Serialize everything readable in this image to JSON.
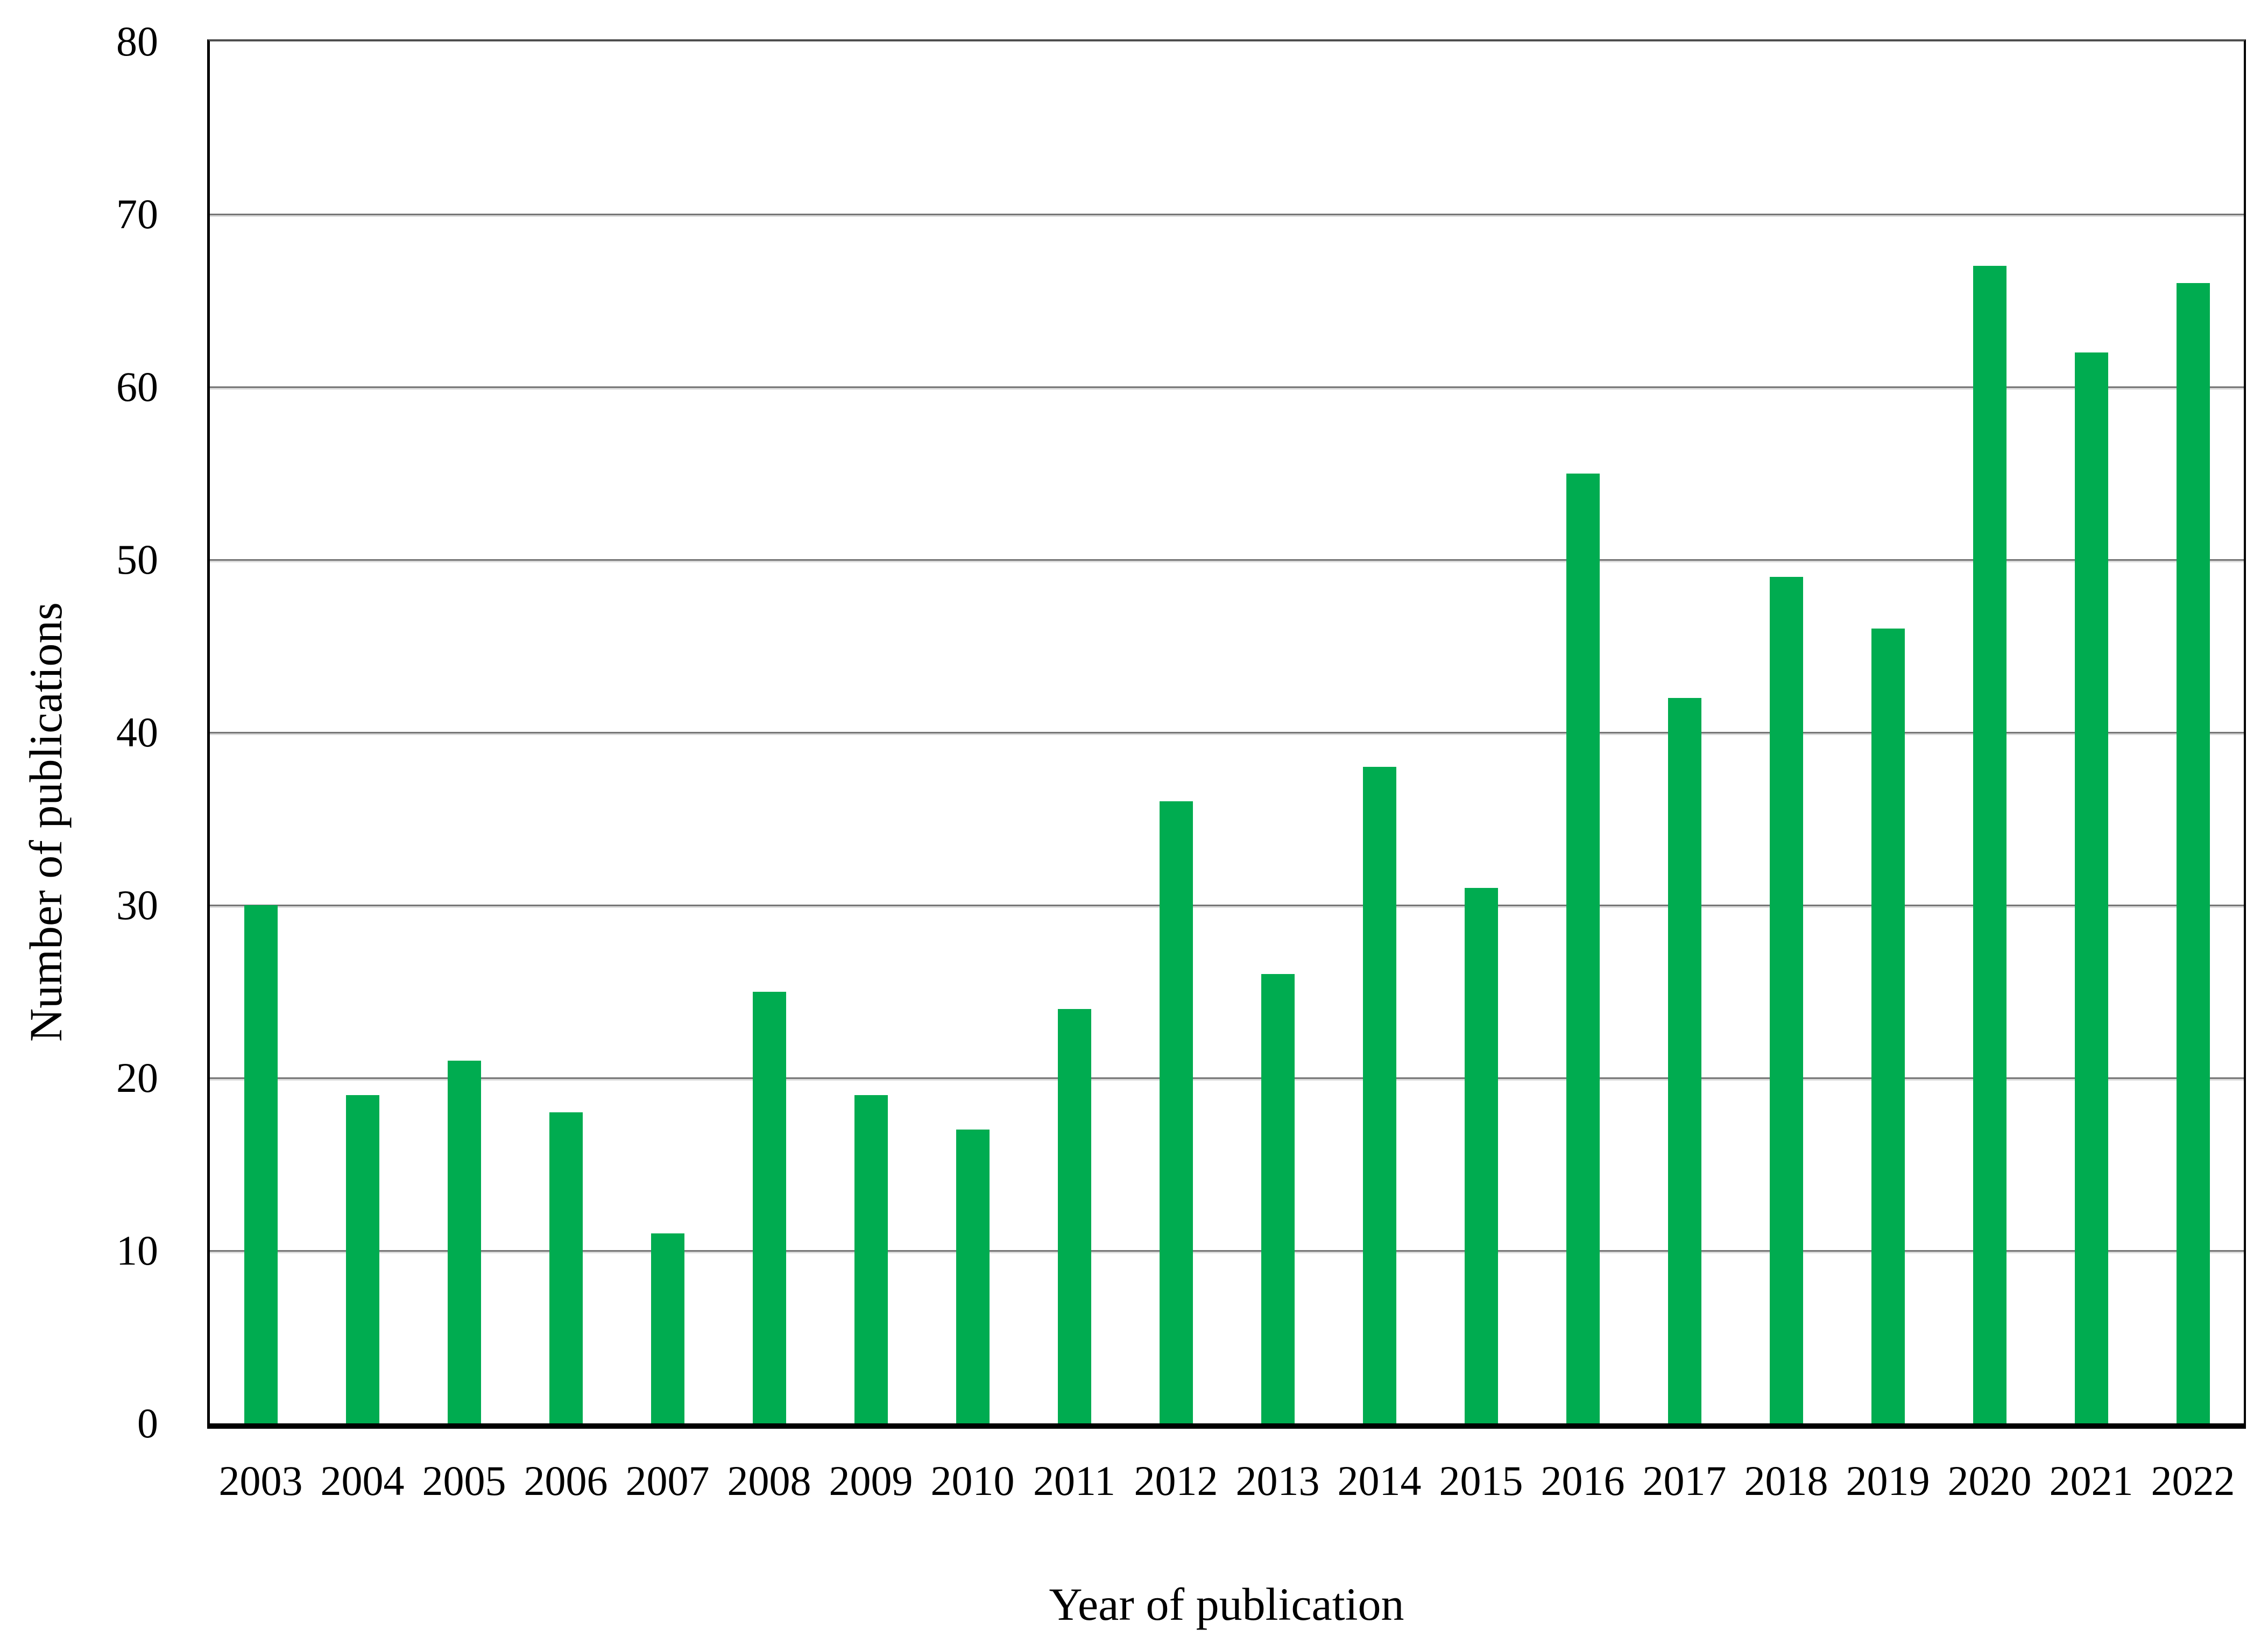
{
  "figure": {
    "background_color": "#ffffff"
  },
  "chart_data": {
    "type": "bar",
    "title": "",
    "xlabel": "Year of publication",
    "ylabel": "Number of publications",
    "categories": [
      "2003",
      "2004",
      "2005",
      "2006",
      "2007",
      "2008",
      "2009",
      "2010",
      "2011",
      "2012",
      "2013",
      "2014",
      "2015",
      "2016",
      "2017",
      "2018",
      "2019",
      "2020",
      "2021",
      "2022"
    ],
    "values": [
      30,
      19,
      21,
      18,
      11,
      25,
      19,
      17,
      24,
      36,
      26,
      38,
      31,
      55,
      42,
      49,
      46,
      67,
      62,
      66
    ],
    "ylim": [
      0,
      80
    ],
    "y_ticks": [
      0,
      10,
      20,
      30,
      40,
      50,
      60,
      70,
      80
    ],
    "grid": true,
    "legend": "none",
    "bar_color": "#00AC50",
    "gridline_color": "#767676",
    "axis_color": "#000000",
    "text_color": "#000000"
  }
}
